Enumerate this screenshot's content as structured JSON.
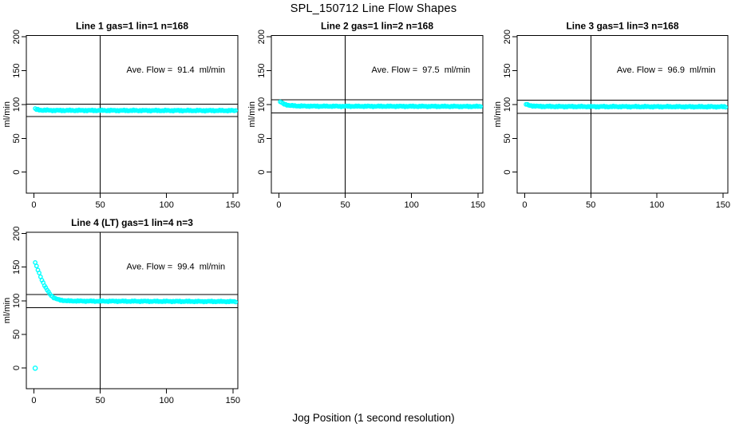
{
  "page": {
    "title": "SPL_150712  Line Flow Shapes",
    "x_axis_label": "Jog Position (1 second resolution)",
    "background_color": "#ffffff",
    "axis_color": "#000000",
    "marker_color": "#00ffff"
  },
  "chart_data": [
    {
      "type": "scatter",
      "title": "Line 1 gas=1 lin=1 n=168",
      "annotation": "Ave. Flow =  91.4  ml/min",
      "ave_flow": 91.4,
      "units": "ml/min",
      "n": 168,
      "ylabel": "ml/min",
      "x_ticks": [
        0,
        50,
        100,
        150
      ],
      "y_ticks": [
        0,
        50,
        100,
        150,
        200
      ],
      "xlim": [
        -5.7,
        153.7
      ],
      "ylim": [
        -31,
        202
      ],
      "grid": false,
      "ref_vline_x": 50,
      "ref_hlines_y": [
        100.5,
        82.3
      ],
      "marker_color": "#00ffff",
      "points_x_span": [
        1,
        152
      ],
      "flow_profile_anchors": [
        [
          1,
          93.5
        ],
        [
          2,
          92.5
        ],
        [
          5,
          91.8
        ],
        [
          15,
          91.3
        ],
        [
          152,
          91.0
        ]
      ],
      "jitter": 0.9,
      "outlier_points": [],
      "annotation_pos": [
        107,
        147
      ]
    },
    {
      "type": "scatter",
      "title": "Line 2 gas=1 lin=2 n=168",
      "annotation": "Ave. Flow =  97.5  ml/min",
      "ave_flow": 97.5,
      "units": "ml/min",
      "n": 168,
      "ylabel": "ml/min",
      "x_ticks": [
        0,
        50,
        100,
        150
      ],
      "y_ticks": [
        0,
        50,
        100,
        150,
        200
      ],
      "xlim": [
        -5.7,
        153.7
      ],
      "ylim": [
        -31,
        202
      ],
      "grid": false,
      "ref_vline_x": 50,
      "ref_hlines_y": [
        107.3,
        87.8
      ],
      "marker_color": "#00ffff",
      "points_x_span": [
        1,
        152
      ],
      "flow_profile_anchors": [
        [
          1,
          104
        ],
        [
          2,
          102.8
        ],
        [
          3,
          101.5
        ],
        [
          5,
          100
        ],
        [
          8,
          98.5
        ],
        [
          15,
          97.8
        ],
        [
          30,
          97.5
        ],
        [
          152,
          97.2
        ]
      ],
      "jitter": 0.8,
      "outlier_points": [],
      "annotation_pos": [
        107,
        147
      ]
    },
    {
      "type": "scatter",
      "title": "Line 3 gas=1 lin=3 n=168",
      "annotation": "Ave. Flow =  96.9  ml/min",
      "ave_flow": 96.9,
      "units": "ml/min",
      "n": 168,
      "ylabel": "ml/min",
      "x_ticks": [
        0,
        50,
        100,
        150
      ],
      "y_ticks": [
        0,
        50,
        100,
        150,
        200
      ],
      "xlim": [
        -5.7,
        153.7
      ],
      "ylim": [
        -31,
        202
      ],
      "grid": false,
      "ref_vline_x": 50,
      "ref_hlines_y": [
        106.6,
        87.2
      ],
      "marker_color": "#00ffff",
      "points_x_span": [
        1,
        152
      ],
      "flow_profile_anchors": [
        [
          1,
          100.5
        ],
        [
          2,
          99.5
        ],
        [
          4,
          98.5
        ],
        [
          10,
          97.3
        ],
        [
          30,
          97.0
        ],
        [
          152,
          96.7
        ]
      ],
      "jitter": 0.9,
      "outlier_points": [],
      "annotation_pos": [
        107,
        147
      ]
    },
    {
      "type": "scatter",
      "title": "Line 4 (LT) gas=1 lin=4 n=3",
      "annotation": "Ave. Flow =  99.4  ml/min",
      "ave_flow": 99.4,
      "units": "ml/min",
      "n": 3,
      "ylabel": "ml/min",
      "x_ticks": [
        0,
        50,
        100,
        150
      ],
      "y_ticks": [
        0,
        50,
        100,
        150,
        200
      ],
      "xlim": [
        -5.7,
        153.7
      ],
      "ylim": [
        -31,
        202
      ],
      "grid": false,
      "ref_vline_x": 50,
      "ref_hlines_y": [
        109.3,
        89.5
      ],
      "marker_color": "#00ffff",
      "points_x_span": [
        1,
        152
      ],
      "flow_profile_anchors": [
        [
          1,
          157
        ],
        [
          2,
          151
        ],
        [
          3,
          146
        ],
        [
          4,
          141
        ],
        [
          5,
          136
        ],
        [
          6,
          131
        ],
        [
          7,
          127
        ],
        [
          8,
          123
        ],
        [
          9,
          119
        ],
        [
          10,
          116
        ],
        [
          12,
          110
        ],
        [
          14,
          106
        ],
        [
          16,
          103.5
        ],
        [
          18,
          102
        ],
        [
          20,
          101
        ],
        [
          25,
          99.8
        ],
        [
          40,
          99.4
        ],
        [
          152,
          98.8
        ]
      ],
      "jitter": 0.8,
      "outlier_points": [
        [
          1,
          -0.5
        ]
      ],
      "annotation_pos": [
        107,
        147
      ]
    }
  ]
}
